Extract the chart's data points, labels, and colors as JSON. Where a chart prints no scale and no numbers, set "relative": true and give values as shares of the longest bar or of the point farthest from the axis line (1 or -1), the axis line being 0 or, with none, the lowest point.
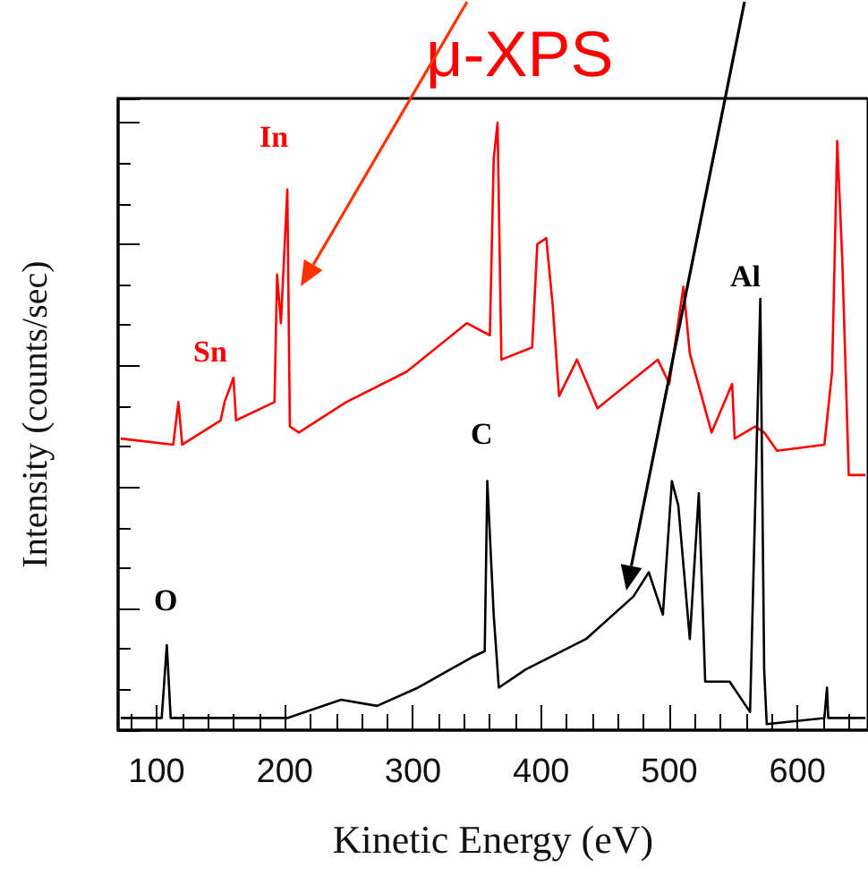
{
  "chart_data": {
    "type": "line",
    "relative": true,
    "xlabel": "Kinetic Energy (eV)",
    "ylabel": "Intensity (counts/sec)",
    "xlim": [
      70,
      655
    ],
    "xticks": [
      100,
      200,
      300,
      400,
      500,
      600
    ],
    "grid": false,
    "marker": "none",
    "line_style": "solid",
    "series": [
      {
        "color": "#ff0000",
        "x": [
          72,
          113,
          117,
          120,
          150,
          153,
          160,
          162,
          192,
          194,
          197,
          202,
          204,
          211,
          248,
          295,
          342,
          360,
          363,
          366,
          369,
          393,
          397,
          404,
          409,
          414,
          428,
          444,
          491,
          500,
          511,
          516,
          533,
          549,
          551,
          567,
          574,
          584,
          621,
          627,
          631,
          635,
          640,
          653
        ],
        "values": [
          0.48,
          0.47,
          0.54,
          0.47,
          0.51,
          0.54,
          0.58,
          0.51,
          0.54,
          0.75,
          0.67,
          0.89,
          0.5,
          0.49,
          0.54,
          0.59,
          0.67,
          0.65,
          0.94,
          1.0,
          0.61,
          0.63,
          0.8,
          0.81,
          0.7,
          0.55,
          0.61,
          0.53,
          0.61,
          0.57,
          0.73,
          0.62,
          0.49,
          0.57,
          0.48,
          0.5,
          0.49,
          0.46,
          0.47,
          0.59,
          0.97,
          0.77,
          0.42,
          0.42
        ]
      },
      {
        "color": "#000000",
        "x": [
          72,
          104,
          108,
          111,
          202,
          244,
          272,
          304,
          346,
          356,
          358,
          363,
          367,
          388,
          435,
          472,
          484,
          495,
          502,
          507,
          516,
          523,
          528,
          547,
          563,
          571,
          574,
          576,
          621,
          623,
          624,
          653
        ],
        "values": [
          0.02,
          0.02,
          0.14,
          0.02,
          0.02,
          0.05,
          0.04,
          0.07,
          0.12,
          0.13,
          0.41,
          0.19,
          0.07,
          0.1,
          0.15,
          0.22,
          0.26,
          0.19,
          0.41,
          0.37,
          0.15,
          0.39,
          0.08,
          0.08,
          0.03,
          0.71,
          0.1,
          0.01,
          0.02,
          0.07,
          0.02,
          0.02
        ]
      }
    ],
    "annotations": [
      "In",
      "Sn",
      "C",
      "O",
      "Al",
      "μ-XPS"
    ]
  }
}
